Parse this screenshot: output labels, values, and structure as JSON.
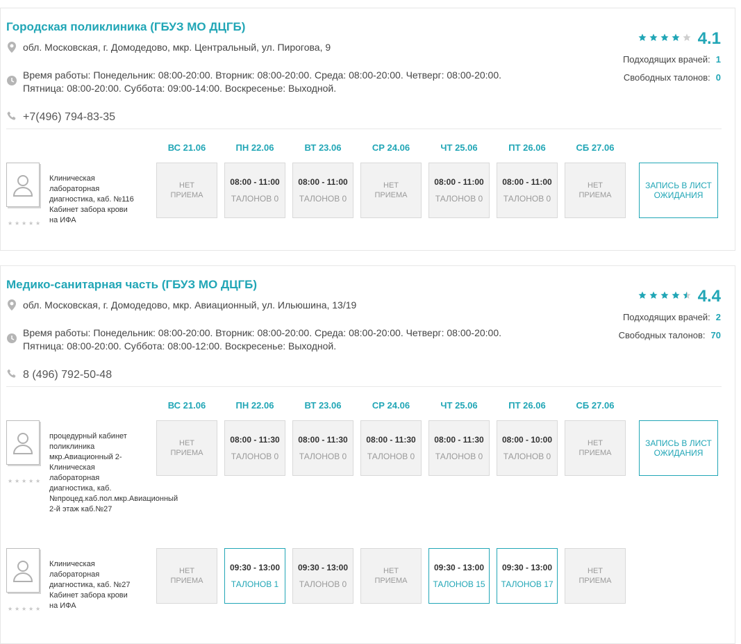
{
  "clinics": [
    {
      "name": "Городская поликлиника (ГБУЗ МО ДЦГБ)",
      "address": "обл. Московская, г. Домодедово, мкр. Центральный, ул. Пирогова, 9",
      "hours_line1": "Время работы: Понедельник: 08:00-20:00. Вторник: 08:00-20:00. Среда: 08:00-20:00. Четверг: 08:00-20:00.",
      "hours_line2": "Пятница: 08:00-20:00. Суббота: 09:00-14:00. Воскресенье: Выходной.",
      "phone": "+7(496) 794-83-35",
      "rating": "4.1",
      "rating_stars": 4,
      "doctors_label": "Подходящих врачей:",
      "doctors_count": "1",
      "tickets_label": "Свободных талонов:",
      "tickets_count": "0",
      "days": [
        "ВС 21.06",
        "ПН 22.06",
        "ВТ 23.06",
        "СР 24.06",
        "ЧТ 25.06",
        "ПТ 26.06",
        "СБ 27.06"
      ],
      "waitlist": "ЗАПИСЬ В ЛИСТ ОЖИДАНИЯ",
      "doctors": [
        {
          "desc": [
            "Клиническая",
            "лабораторная",
            "диагностика, каб. №116",
            "Кабинет забора крови",
            "на ИФА"
          ],
          "slots": [
            {
              "type": "none",
              "text": "НЕТ ПРИЕМА"
            },
            {
              "type": "busy",
              "time": "08:00 - 11:00",
              "talon": "ТАЛОНОВ 0"
            },
            {
              "type": "busy",
              "time": "08:00 - 11:00",
              "talon": "ТАЛОНОВ 0"
            },
            {
              "type": "none",
              "text": "НЕТ ПРИЕМА"
            },
            {
              "type": "busy",
              "time": "08:00 - 11:00",
              "talon": "ТАЛОНОВ 0"
            },
            {
              "type": "busy",
              "time": "08:00 - 11:00",
              "talon": "ТАЛОНОВ 0"
            },
            {
              "type": "none",
              "text": "НЕТ ПРИЕМА"
            }
          ]
        }
      ]
    },
    {
      "name": "Медико-санитарная часть (ГБУЗ МО ДЦГБ)",
      "address": "обл. Московская, г. Домодедово, мкр. Авиационный, ул. Ильюшина, 13/19",
      "hours_line1": "Время работы: Понедельник: 08:00-20:00. Вторник: 08:00-20:00. Среда: 08:00-20:00. Четверг: 08:00-20:00.",
      "hours_line2": "Пятница: 08:00-20:00. Суббота: 08:00-12:00. Воскресенье: Выходной.",
      "phone": "8 (496) 792-50-48",
      "rating": "4.4",
      "rating_stars": 4.5,
      "doctors_label": "Подходящих врачей:",
      "doctors_count": "2",
      "tickets_label": "Свободных талонов:",
      "tickets_count": "70",
      "days": [
        "ВС 21.06",
        "ПН 22.06",
        "ВТ 23.06",
        "СР 24.06",
        "ЧТ 25.06",
        "ПТ 26.06",
        "СБ 27.06"
      ],
      "waitlist": "ЗАПИСЬ В ЛИСТ ОЖИДАНИЯ",
      "doctors": [
        {
          "desc": [
            "процедурный кабинет",
            "поликлиника",
            "мкр.Авиационный 2-",
            "Клиническая",
            "лабораторная",
            "диагностика, каб.",
            "№процед.каб.пол.мкр.Авиационный",
            "2-й этаж каб.№27"
          ],
          "slots": [
            {
              "type": "none",
              "text": "НЕТ ПРИЕМА"
            },
            {
              "type": "busy",
              "time": "08:00 - 11:30",
              "talon": "ТАЛОНОВ 0"
            },
            {
              "type": "busy",
              "time": "08:00 - 11:30",
              "talon": "ТАЛОНОВ 0"
            },
            {
              "type": "busy",
              "time": "08:00 - 11:30",
              "talon": "ТАЛОНОВ 0"
            },
            {
              "type": "busy",
              "time": "08:00 - 11:30",
              "talon": "ТАЛОНОВ 0"
            },
            {
              "type": "busy",
              "time": "08:00 - 10:00",
              "talon": "ТАЛОНОВ 0"
            },
            {
              "type": "none",
              "text": "НЕТ ПРИЕМА"
            }
          ]
        },
        {
          "desc": [
            "Клиническая",
            "лабораторная",
            "диагностика, каб. №27",
            "Кабинет забора крови",
            "на ИФА"
          ],
          "slots": [
            {
              "type": "none",
              "text": "НЕТ ПРИЕМА"
            },
            {
              "type": "avail",
              "time": "09:30 - 13:00",
              "talon": "ТАЛОНОВ 1"
            },
            {
              "type": "busy",
              "time": "09:30 - 13:00",
              "talon": "ТАЛОНОВ 0"
            },
            {
              "type": "none",
              "text": "НЕТ ПРИЕМА"
            },
            {
              "type": "avail",
              "time": "09:30 - 13:00",
              "talon": "ТАЛОНОВ 15"
            },
            {
              "type": "avail",
              "time": "09:30 - 13:00",
              "talon": "ТАЛОНОВ 17"
            },
            {
              "type": "none",
              "text": "НЕТ ПРИЕМА"
            }
          ]
        }
      ]
    }
  ],
  "colors": {
    "accent": "#21a6b6",
    "slot_bg": "#f2f2f2",
    "muted": "#9a9a9a"
  },
  "icons": {
    "address": "map-pin-icon",
    "hours": "clock-icon",
    "phone": "phone-icon",
    "avatar": "doctor-avatar-icon"
  }
}
